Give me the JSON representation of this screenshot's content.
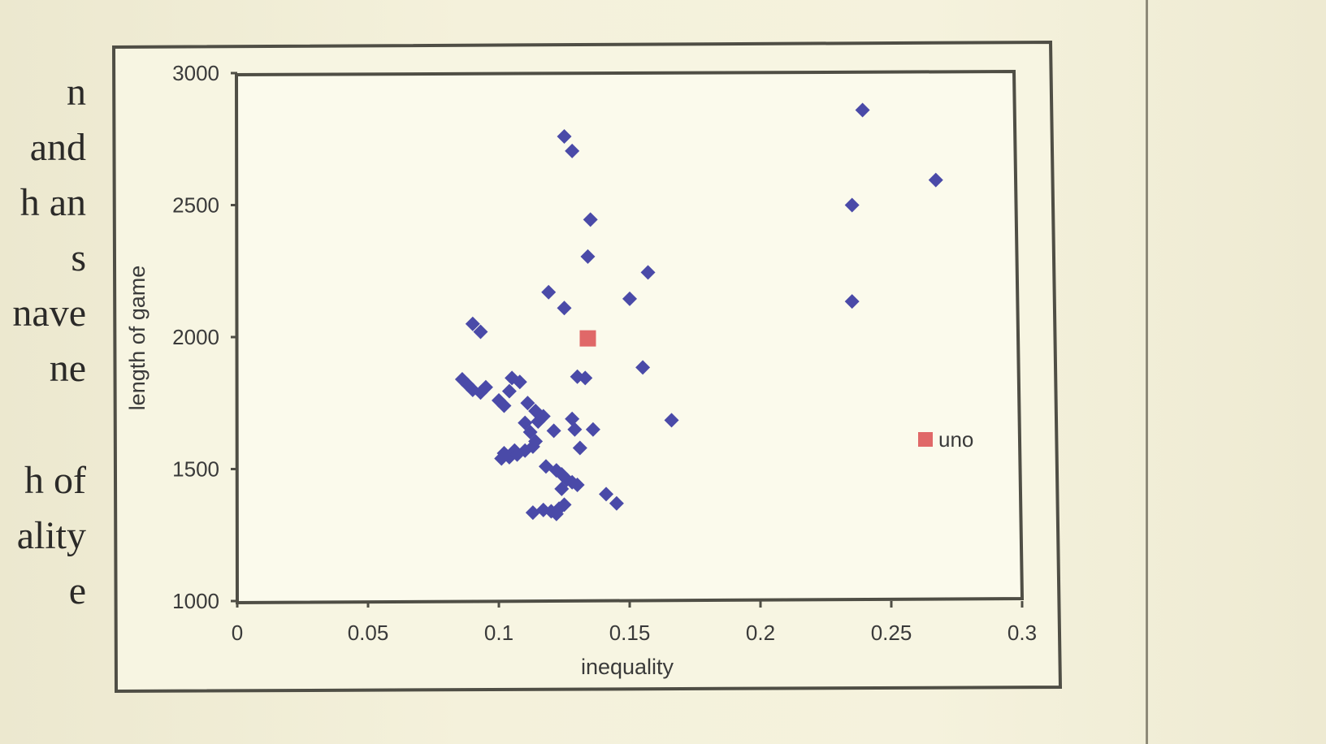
{
  "side_text": {
    "lines": [
      "n",
      "and",
      "h an",
      "s",
      "nave",
      "ne",
      "",
      "h of",
      "ality",
      "e"
    ]
  },
  "chart_data": {
    "type": "scatter",
    "title": "",
    "xlabel": "inequality",
    "ylabel": "length of game",
    "xlim": [
      0,
      0.3
    ],
    "ylim": [
      1000,
      3000
    ],
    "x_ticks": [
      "0",
      "0.05",
      "0.1",
      "0.15",
      "0.2",
      "0.25",
      "0.3"
    ],
    "y_ticks": [
      "1000",
      "1500",
      "2000",
      "2500",
      "3000"
    ],
    "grid": false,
    "legend_placement": "right",
    "series": [
      {
        "marker": "diamond",
        "color": "#4a4aa8",
        "points": [
          [
            0.125,
            2760
          ],
          [
            0.128,
            2705
          ],
          [
            0.135,
            2445
          ],
          [
            0.134,
            2305
          ],
          [
            0.119,
            2170
          ],
          [
            0.125,
            2110
          ],
          [
            0.09,
            2050
          ],
          [
            0.093,
            2020
          ],
          [
            0.15,
            2145
          ],
          [
            0.157,
            2245
          ],
          [
            0.155,
            1885
          ],
          [
            0.166,
            1685
          ],
          [
            0.13,
            1850
          ],
          [
            0.133,
            1845
          ],
          [
            0.105,
            1845
          ],
          [
            0.108,
            1830
          ],
          [
            0.086,
            1840
          ],
          [
            0.088,
            1820
          ],
          [
            0.09,
            1800
          ],
          [
            0.093,
            1790
          ],
          [
            0.095,
            1810
          ],
          [
            0.104,
            1795
          ],
          [
            0.1,
            1760
          ],
          [
            0.102,
            1740
          ],
          [
            0.111,
            1750
          ],
          [
            0.114,
            1720
          ],
          [
            0.117,
            1700
          ],
          [
            0.115,
            1680
          ],
          [
            0.11,
            1675
          ],
          [
            0.112,
            1640
          ],
          [
            0.114,
            1605
          ],
          [
            0.113,
            1585
          ],
          [
            0.11,
            1570
          ],
          [
            0.106,
            1570
          ],
          [
            0.102,
            1560
          ],
          [
            0.101,
            1540
          ],
          [
            0.104,
            1545
          ],
          [
            0.107,
            1555
          ],
          [
            0.121,
            1645
          ],
          [
            0.128,
            1690
          ],
          [
            0.129,
            1650
          ],
          [
            0.136,
            1650
          ],
          [
            0.131,
            1580
          ],
          [
            0.118,
            1510
          ],
          [
            0.122,
            1495
          ],
          [
            0.124,
            1480
          ],
          [
            0.126,
            1460
          ],
          [
            0.128,
            1450
          ],
          [
            0.13,
            1440
          ],
          [
            0.124,
            1425
          ],
          [
            0.141,
            1405
          ],
          [
            0.145,
            1370
          ],
          [
            0.125,
            1365
          ],
          [
            0.123,
            1350
          ],
          [
            0.12,
            1340
          ],
          [
            0.117,
            1345
          ],
          [
            0.113,
            1335
          ],
          [
            0.122,
            1330
          ],
          [
            0.239,
            2860
          ],
          [
            0.267,
            2595
          ],
          [
            0.235,
            2500
          ],
          [
            0.235,
            2135
          ]
        ]
      },
      {
        "name": "uno",
        "marker": "square",
        "color": "#e06868",
        "points": [
          [
            0.134,
            1995
          ]
        ]
      }
    ]
  }
}
